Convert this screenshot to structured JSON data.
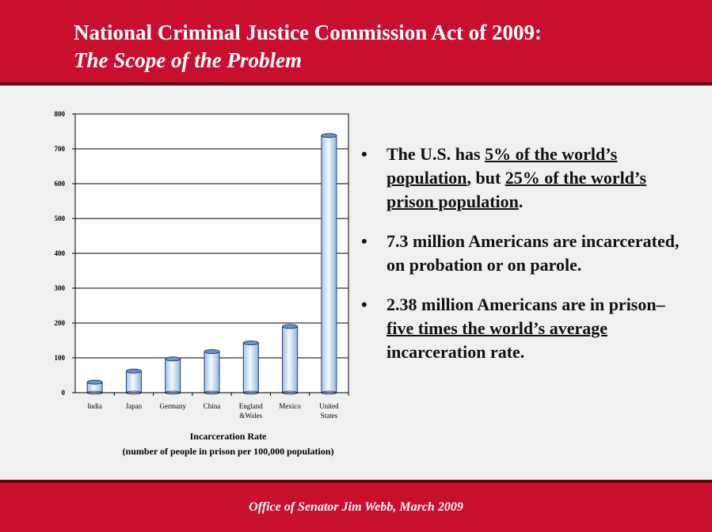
{
  "header": {
    "title": "National Criminal Justice Commission Act of 2009:",
    "subtitle": "The Scope of the Problem"
  },
  "footer": {
    "text": "Office of Senator Jim Webb, March 2009"
  },
  "colors": {
    "brand_red": "#c8102e",
    "bar_fill": "#cfe3f6",
    "bar_edge": "#1f3b78"
  },
  "chart_data": {
    "type": "bar",
    "categories": [
      "India",
      "Japan",
      "Germany",
      "China",
      "England &Wales",
      "Mexico",
      "United States"
    ],
    "category_lines": [
      [
        "India"
      ],
      [
        "Japan"
      ],
      [
        "Germany"
      ],
      [
        "China"
      ],
      [
        "England",
        "&Wales"
      ],
      [
        "Mexico"
      ],
      [
        "United",
        "States"
      ]
    ],
    "values": [
      30,
      62,
      97,
      118,
      143,
      190,
      738
    ],
    "yticks": [
      0,
      100,
      200,
      300,
      400,
      500,
      600,
      700,
      800
    ],
    "ylim": [
      0,
      800
    ],
    "grid": true,
    "xlabel": "Incarceration Rate",
    "xlabel2": "(number of people in prison per 100,000 population)"
  },
  "bullets": {
    "symbol": "•",
    "b1": {
      "t1": "The U.S. has ",
      "u1": "5% of the world’s population",
      "t2": ", but ",
      "u2": "25% of the world’s prison population",
      "t3": "."
    },
    "b2": {
      "t1": "7.3 million Americans are incarcerated, on probation or on parole."
    },
    "b3": {
      "t1": "2.38 million Americans are in prison–  ",
      "u1": "five times the world’s average",
      "t2": " incarceration rate."
    }
  }
}
